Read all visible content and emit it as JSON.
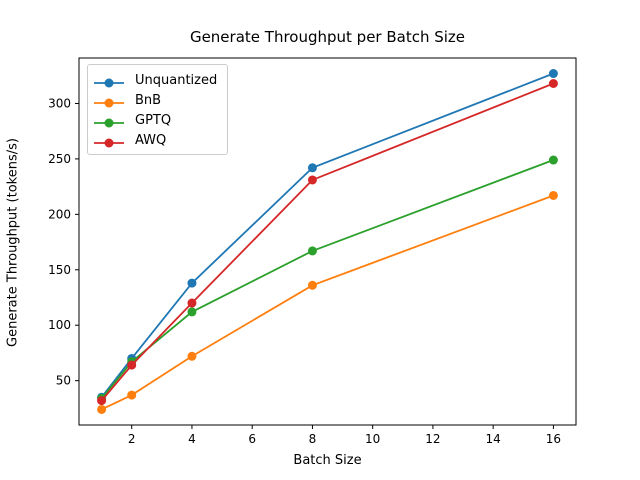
{
  "chart_data": {
    "type": "line",
    "title": "Generate Throughput per Batch Size",
    "xlabel": "Batch Size",
    "ylabel": "Generate Throughput (tokens/s)",
    "x": [
      1,
      2,
      4,
      8,
      16
    ],
    "series": [
      {
        "name": "Unquantized",
        "color": "#1f77b4",
        "values": [
          35,
          70,
          138,
          242,
          327
        ]
      },
      {
        "name": "BnB",
        "color": "#ff7f0e",
        "values": [
          24,
          37,
          72,
          136,
          217
        ]
      },
      {
        "name": "GPTQ",
        "color": "#2ca02c",
        "values": [
          34,
          67,
          112,
          167,
          249
        ]
      },
      {
        "name": "AWQ",
        "color": "#d62728",
        "values": [
          32,
          64,
          120,
          231,
          318
        ]
      }
    ],
    "xlim": [
      0.25,
      16.75
    ],
    "ylim": [
      10,
      341
    ],
    "xticks": [
      2,
      4,
      6,
      8,
      10,
      12,
      14,
      16
    ],
    "yticks": [
      50,
      100,
      150,
      200,
      250,
      300
    ],
    "grid": false,
    "legend_position": "upper left",
    "marker": "circle",
    "axis_color": "#000000"
  }
}
